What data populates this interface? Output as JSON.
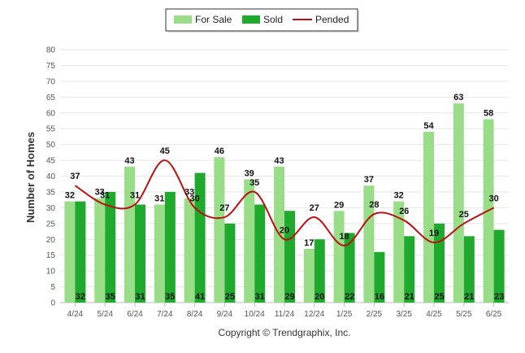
{
  "chart_data": {
    "type": "bar",
    "title": "",
    "xlabel": "",
    "ylabel": "Number of Homes",
    "ylim": [
      0,
      80
    ],
    "ytick_step": 5,
    "grid": true,
    "legend_position": "top-center",
    "categories": [
      "4/24",
      "5/24",
      "6/24",
      "7/24",
      "8/24",
      "9/24",
      "10/24",
      "11/24",
      "12/24",
      "1/25",
      "2/25",
      "3/25",
      "4/25",
      "5/25",
      "6/25"
    ],
    "series": [
      {
        "name": "For Sale",
        "type": "bar",
        "color": "#99dd88",
        "values": [
          32,
          33,
          43,
          31,
          33,
          46,
          39,
          43,
          17,
          29,
          37,
          32,
          54,
          63,
          58
        ]
      },
      {
        "name": "Sold",
        "type": "bar",
        "color": "#1faa2e",
        "values": [
          32,
          35,
          31,
          35,
          41,
          25,
          31,
          29,
          20,
          22,
          16,
          21,
          25,
          21,
          23
        ]
      },
      {
        "name": "Pended",
        "type": "line",
        "color": "#bb1111",
        "values": [
          37,
          31,
          31,
          45,
          30,
          27,
          35,
          20,
          27,
          18,
          28,
          26,
          19,
          25,
          30
        ]
      }
    ],
    "footer": "Copyright © Trendgraphix, Inc."
  }
}
